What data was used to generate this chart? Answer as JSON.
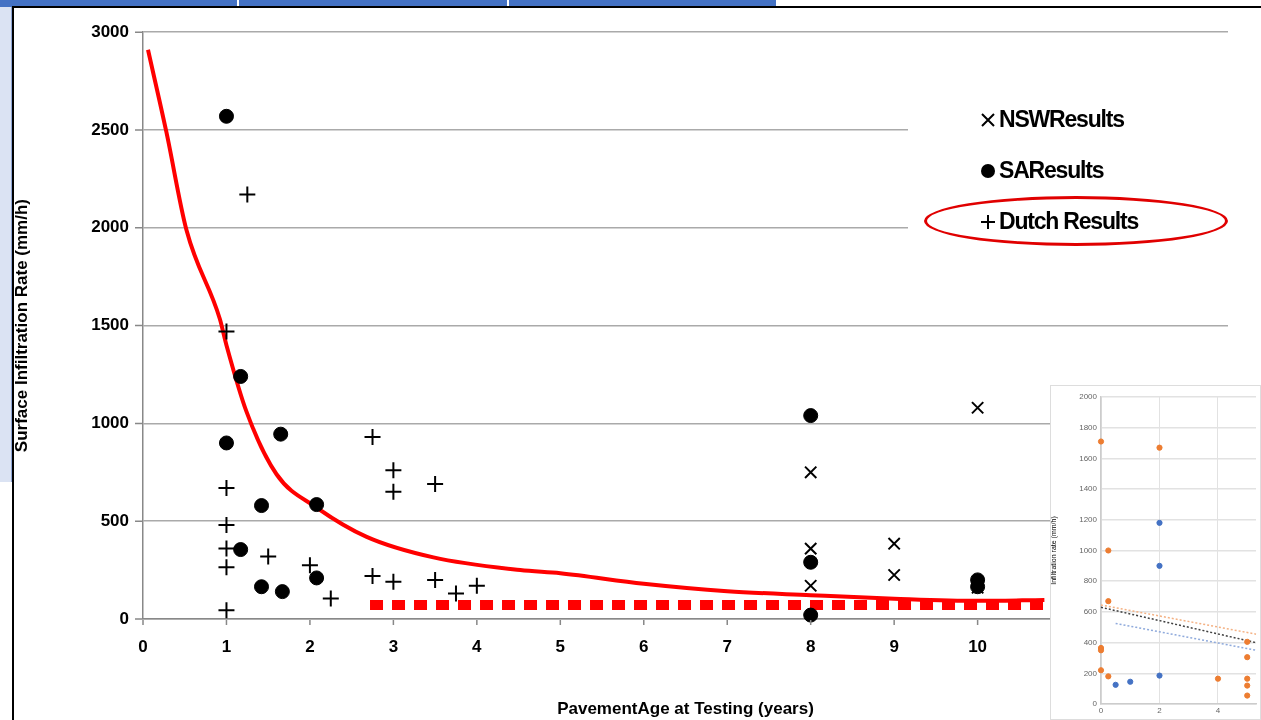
{
  "chart_data": [
    {
      "type": "scatter",
      "xlabel": "PavementAge at Testing (years)",
      "ylabel": "Surface Infiltration Rate (mm/h)",
      "xlim": [
        0,
        13
      ],
      "xticks": [
        0,
        1,
        2,
        3,
        4,
        5,
        6,
        7,
        8,
        9,
        10
      ],
      "ylim": [
        0,
        3000
      ],
      "yticks": [
        0,
        500,
        1000,
        1500,
        2000,
        2500,
        3000
      ],
      "grid": "y",
      "legend": "top right",
      "series": [
        {
          "name": "NSWResults",
          "color": "#000000",
          "marker": "x",
          "x": [
            8,
            8,
            8,
            9,
            9,
            10,
            10
          ],
          "values": [
            750,
            360,
            170,
            385,
            225,
            1080,
            160
          ]
        },
        {
          "name": "SAResults",
          "color": "#000000",
          "marker": "circle",
          "x": [
            1,
            1.17,
            1,
            1.65,
            1.42,
            2.08,
            1.17,
            2.08,
            1.42,
            1.67,
            8,
            8,
            8,
            10,
            10
          ],
          "values": [
            2570,
            1240,
            900,
            945,
            580,
            585,
            355,
            210,
            165,
            140,
            1040,
            290,
            20,
            200,
            165
          ]
        },
        {
          "name": "Dutch Results",
          "color": "#000000",
          "marker": "cross",
          "x": [
            1.25,
            1,
            1,
            1,
            1,
            1,
            1,
            1.5,
            2,
            2.25,
            2.75,
            3,
            3,
            3.5,
            2.75,
            3,
            3.5,
            3.75,
            4
          ],
          "values": [
            2170,
            1470,
            670,
            480,
            360,
            265,
            45,
            320,
            275,
            105,
            930,
            760,
            650,
            690,
            220,
            190,
            200,
            130,
            170
          ]
        },
        {
          "type": "line",
          "color": "#ff0000",
          "marker": "none",
          "line_style": "solid",
          "x": [
            0.06,
            0.28,
            0.52,
            0.92,
            1,
            1.24,
            1.6,
            2.08,
            2.68,
            3.48,
            4.52,
            5,
            6,
            7,
            8,
            9,
            10,
            10.8
          ],
          "values": [
            2910,
            2490,
            1990,
            1535,
            1400,
            1060,
            740,
            570,
            420,
            315,
            250,
            234,
            180,
            142,
            122,
            104,
            93,
            97
          ]
        },
        {
          "type": "line",
          "color": "#ff0000",
          "marker": "none",
          "line_style": "dashed",
          "x": [
            2.72,
            10.8
          ],
          "values": [
            72,
            72
          ]
        }
      ]
    },
    {
      "type": "scatter",
      "ylabel": "Infiltration rate (mm/h)",
      "xlim": [
        0,
        5.3
      ],
      "xticks": [
        0,
        2,
        4
      ],
      "ylim": [
        0,
        2000
      ],
      "yticks": [
        0,
        200,
        400,
        600,
        800,
        1000,
        1200,
        1400,
        1600,
        1800,
        2000
      ],
      "grid": true,
      "series": [
        {
          "color": "#ed7d31",
          "marker": "circle",
          "x": [
            0,
            2,
            0.25,
            0.25,
            0,
            0,
            0,
            0.25,
            4,
            5,
            5,
            5,
            5,
            5
          ],
          "values": [
            1710,
            1670,
            1000,
            670,
            365,
            350,
            220,
            180,
            165,
            405,
            305,
            165,
            120,
            55
          ]
        },
        {
          "color": "#4472c4",
          "marker": "circle",
          "x": [
            2,
            2,
            2,
            0.5,
            1
          ],
          "values": [
            1180,
            900,
            185,
            125,
            145
          ]
        },
        {
          "type": "line",
          "color": "#f4b183",
          "marker": "none",
          "line_style": "dotted",
          "x": [
            0,
            5.3
          ],
          "values": [
            645,
            455
          ]
        },
        {
          "type": "line",
          "color": "#404040",
          "marker": "none",
          "line_style": "dotted",
          "x": [
            0,
            5.3
          ],
          "values": [
            630,
            400
          ]
        },
        {
          "type": "line",
          "color": "#8faadc",
          "marker": "none",
          "line_style": "dotted",
          "x": [
            0.5,
            5.3
          ],
          "values": [
            525,
            350
          ]
        }
      ]
    }
  ]
}
